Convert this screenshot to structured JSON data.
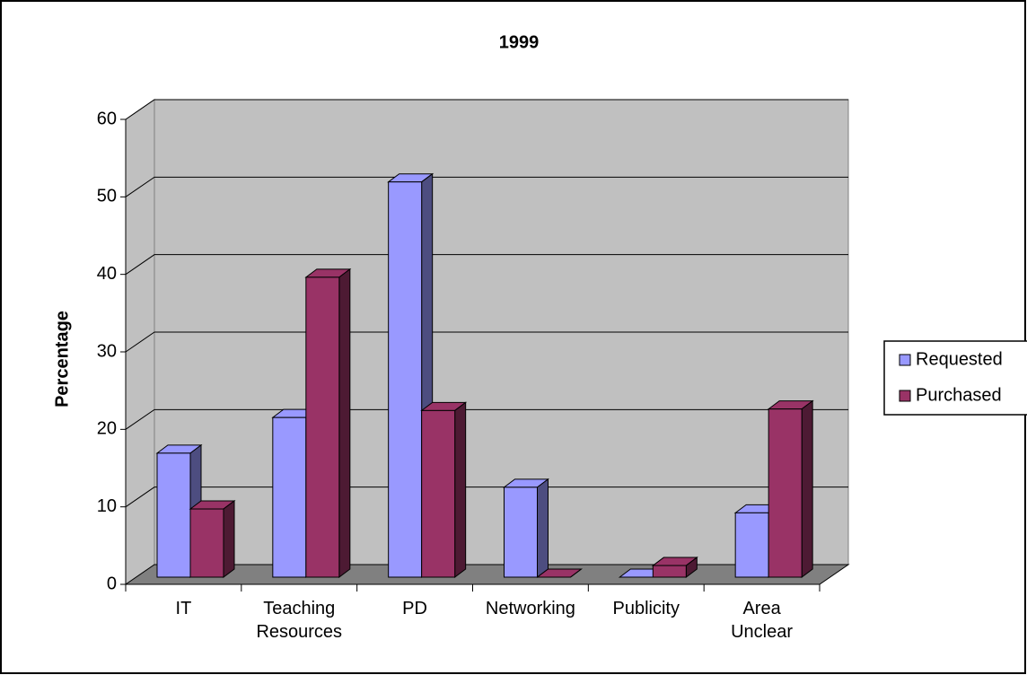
{
  "chart_data": {
    "type": "bar3d",
    "title": "1999",
    "y_label": "Percentage",
    "categories": [
      "IT",
      "Teaching Resources",
      "PD",
      "Networking",
      "Publicity",
      "Area Unclear"
    ],
    "series": [
      {
        "name": "Requested",
        "color": "#9999ff",
        "values": [
          16,
          20.6,
          51,
          11.6,
          0,
          8.3
        ]
      },
      {
        "name": "Purchased",
        "color": "#993366",
        "values": [
          8.8,
          38.7,
          21.5,
          0,
          1.5,
          21.7
        ]
      }
    ],
    "ylim": [
      0,
      60
    ],
    "yticks": [
      0,
      10,
      20,
      30,
      40,
      50,
      60
    ],
    "grid": true,
    "legend": "right"
  }
}
